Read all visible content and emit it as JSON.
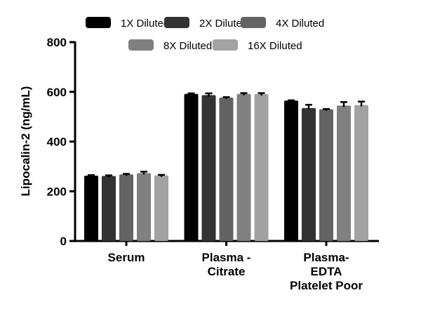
{
  "chart_data": {
    "type": "bar",
    "ylabel": "Lipocalin-2 (ng/mL)",
    "ylim": [
      0,
      800
    ],
    "yticks": [
      0,
      200,
      400,
      600,
      800
    ],
    "categories": [
      [
        "Serum"
      ],
      [
        "Plasma -",
        "Citrate"
      ],
      [
        "Plasma-",
        "EDTA",
        "Platelet Poor"
      ]
    ],
    "legend_position": "top",
    "series": [
      {
        "name": "1X Diluted",
        "color": "#000000",
        "values": [
          263,
          592,
          565
        ],
        "errors": [
          2,
          2,
          1
        ]
      },
      {
        "name": "2X Diluted",
        "color": "#333333",
        "values": [
          262,
          587,
          535
        ],
        "errors": [
          2,
          7,
          13
        ]
      },
      {
        "name": "4X Diluted",
        "color": "#636363",
        "values": [
          268,
          577,
          530
        ],
        "errors": [
          2,
          2,
          1
        ]
      },
      {
        "name": "8X Diluted",
        "color": "#808080",
        "values": [
          273,
          592,
          545
        ],
        "errors": [
          6,
          3,
          14
        ]
      },
      {
        "name": "16X Diluted",
        "color": "#a2a2a2",
        "values": [
          264,
          591,
          547
        ],
        "errors": [
          2,
          4,
          14
        ]
      }
    ]
  }
}
